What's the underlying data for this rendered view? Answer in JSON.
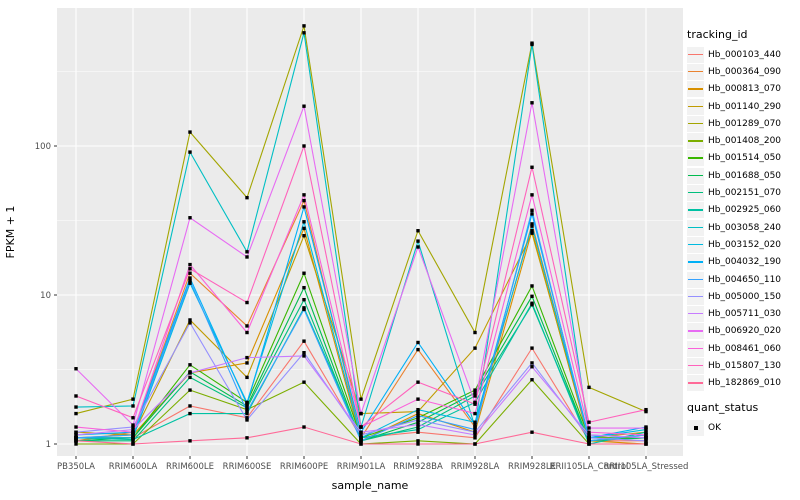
{
  "chart_data": {
    "type": "line",
    "title": "",
    "xlabel": "sample_name",
    "ylabel": "FPKM + 1",
    "y_scale": "log10",
    "ylim": [
      1,
      845
    ],
    "y_ticks": [
      1,
      10,
      100
    ],
    "y_minor_ticks": [
      3.162,
      31.62,
      316.2
    ],
    "grid": true,
    "panel_bg": "#EBEBEB",
    "grid_color": "#FFFFFF",
    "point_color": "#000000",
    "tick_label_color": "#4D4D4D",
    "legend_position": "right",
    "categories": [
      "PB350LA",
      "RRIM600LA",
      "RRIM600LE",
      "RRIM600SE",
      "RRIM600PE",
      "RRIM901LA",
      "RRIM928BA",
      "RRIM928LA",
      "RRIM928LE",
      "RRII105LA_Control",
      "RRII105LA_Stressed"
    ],
    "series": [
      {
        "name": "Hb_000103_440",
        "color": "#F8766D",
        "values": [
          1.1,
          1.1,
          1.8,
          1.5,
          4.9,
          1.1,
          1.2,
          1.1,
          4.4,
          1.05,
          1.05
        ]
      },
      {
        "name": "Hb_000364_090",
        "color": "#EA8331",
        "values": [
          1.05,
          1.2,
          14,
          6.2,
          43,
          1.1,
          4.3,
          1.3,
          30,
          1.1,
          1.1
        ]
      },
      {
        "name": "Hb_000813_070",
        "color": "#D89000",
        "values": [
          1.1,
          1.15,
          3.0,
          3.5,
          28,
          1.05,
          1.6,
          1.2,
          27,
          1.05,
          1.0
        ]
      },
      {
        "name": "Hb_001140_290",
        "color": "#C09B00",
        "values": [
          1.2,
          1.15,
          6.8,
          2.8,
          25,
          1.6,
          1.65,
          4.4,
          26,
          1.1,
          1.2
        ]
      },
      {
        "name": "Hb_001289_070",
        "color": "#A3A500",
        "values": [
          1.6,
          2.0,
          124,
          45,
          640,
          2.0,
          27,
          5.6,
          490,
          2.4,
          1.65
        ]
      },
      {
        "name": "Hb_001408_200",
        "color": "#7CAE00",
        "values": [
          1.0,
          1.0,
          2.3,
          1.7,
          2.6,
          1.0,
          1.05,
          1.0,
          2.7,
          1.0,
          1.0
        ]
      },
      {
        "name": "Hb_001514_050",
        "color": "#39B600",
        "values": [
          1.1,
          1.1,
          3.4,
          1.9,
          14,
          1.1,
          1.5,
          2.3,
          11.5,
          1.1,
          1.1
        ]
      },
      {
        "name": "Hb_001688_050",
        "color": "#00BB4E",
        "values": [
          1.05,
          1.1,
          3.05,
          1.8,
          11.2,
          1.05,
          1.4,
          2.2,
          9.8,
          1.05,
          1.1
        ]
      },
      {
        "name": "Hb_002151_070",
        "color": "#00BF7D",
        "values": [
          1.05,
          1.05,
          2.8,
          1.75,
          9.3,
          1.05,
          1.3,
          2.1,
          8.6,
          1.05,
          1.15
        ]
      },
      {
        "name": "Hb_002925_060",
        "color": "#00C1A3",
        "values": [
          1.1,
          1.07,
          1.6,
          1.6,
          8.2,
          1.1,
          1.25,
          1.9,
          8.8,
          1.0,
          1.2
        ]
      },
      {
        "name": "Hb_003058_240",
        "color": "#00BFC4",
        "values": [
          1.77,
          1.8,
          91,
          19.5,
          575,
          1.3,
          23,
          1.3,
          480,
          1.15,
          1.1
        ]
      },
      {
        "name": "Hb_003152_020",
        "color": "#00BAE0",
        "values": [
          1.1,
          1.1,
          12,
          1.9,
          31,
          1.1,
          1.7,
          1.4,
          29,
          1.1,
          1.25
        ]
      },
      {
        "name": "Hb_004032_190",
        "color": "#00B0F6",
        "values": [
          1.15,
          1.2,
          13,
          1.85,
          39,
          1.2,
          4.8,
          1.35,
          35,
          1.1,
          1.3
        ]
      },
      {
        "name": "Hb_004650_110",
        "color": "#35A2FF",
        "values": [
          1.1,
          1.15,
          12.5,
          1.65,
          8.0,
          1.05,
          1.55,
          1.25,
          37,
          1.05,
          1.15
        ]
      },
      {
        "name": "Hb_005000_150",
        "color": "#9590FF",
        "values": [
          1.2,
          1.3,
          6.5,
          1.45,
          4.1,
          1.15,
          1.45,
          1.2,
          3.5,
          1.1,
          1.05
        ]
      },
      {
        "name": "Hb_005711_030",
        "color": "#C77CFF",
        "values": [
          1.15,
          1.25,
          3.0,
          3.8,
          3.9,
          1.2,
          1.35,
          1.15,
          3.3,
          1.15,
          1.1
        ]
      },
      {
        "name": "Hb_006920_020",
        "color": "#E76BF3",
        "values": [
          3.2,
          1.34,
          33,
          18,
          185,
          1.6,
          21,
          1.9,
          195,
          1.28,
          1.28
        ]
      },
      {
        "name": "Hb_008461_060",
        "color": "#FA62DB",
        "values": [
          1.3,
          1.2,
          16,
          5.6,
          47,
          1.3,
          2.0,
          1.6,
          47,
          1.2,
          1.15
        ]
      },
      {
        "name": "Hb_015807_130",
        "color": "#FF62BC",
        "values": [
          2.1,
          1.5,
          15,
          8.9,
          100,
          1.3,
          2.6,
          1.85,
          72,
          1.4,
          1.7
        ]
      },
      {
        "name": "Hb_182869_010",
        "color": "#FF6A98",
        "values": [
          1.05,
          1.0,
          1.05,
          1.1,
          1.3,
          1.0,
          1.0,
          1.0,
          1.2,
          1.0,
          1.0
        ]
      }
    ]
  },
  "legend": {
    "tracking_title": "tracking_id",
    "quant_title": "quant_status",
    "quant_items": [
      {
        "label": "OK",
        "color": "#000000"
      }
    ]
  }
}
